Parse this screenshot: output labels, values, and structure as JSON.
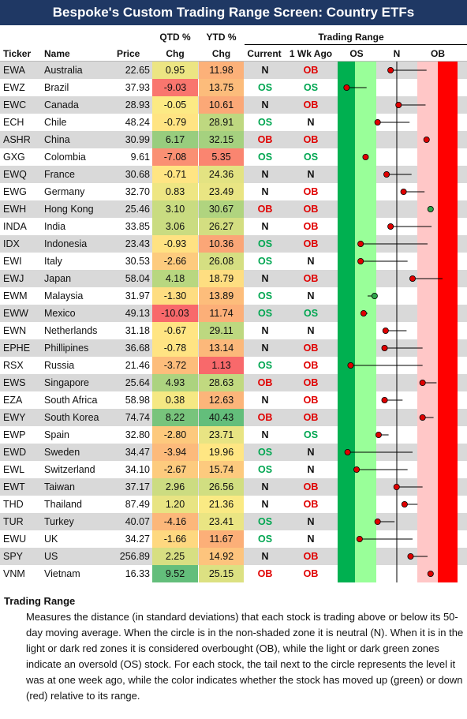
{
  "title": "Bespoke's Custom Trading Range Screen: Country ETFs",
  "headers": {
    "ticker": "Ticker",
    "name": "Name",
    "price": "Price",
    "qtd_top": "QTD %",
    "qtd_bot": "Chg",
    "ytd_top": "YTD %",
    "ytd_bot": "Chg",
    "trading_range": "Trading Range",
    "current": "Current",
    "week_ago": "1 Wk Ago",
    "os": "OS",
    "n": "N",
    "ob": "OB"
  },
  "colors": {
    "title_bg": "#1f3864",
    "os_text": "#00a651",
    "ob_text": "#e00000",
    "dark_green": "#00b050",
    "light_green": "#99ff99",
    "light_red": "#ffc7c7",
    "dark_red": "#ff0000",
    "dot_up": "#2ea64a",
    "dot_down": "#e00000"
  },
  "rows": [
    {
      "ticker": "EWA",
      "name": "Australia",
      "price": "22.65",
      "qtd": "0.95",
      "ytd": "11.98",
      "current": "N",
      "week_ago": "OB"
    },
    {
      "ticker": "EWZ",
      "name": "Brazil",
      "price": "37.93",
      "qtd": "-9.03",
      "ytd": "13.75",
      "current": "OS",
      "week_ago": "OS"
    },
    {
      "ticker": "EWC",
      "name": "Canada",
      "price": "28.93",
      "qtd": "-0.05",
      "ytd": "10.61",
      "current": "N",
      "week_ago": "OB"
    },
    {
      "ticker": "ECH",
      "name": "Chile",
      "price": "48.24",
      "qtd": "-0.79",
      "ytd": "28.91",
      "current": "OS",
      "week_ago": "N"
    },
    {
      "ticker": "ASHR",
      "name": "China",
      "price": "30.99",
      "qtd": "6.17",
      "ytd": "32.15",
      "current": "OB",
      "week_ago": "OB"
    },
    {
      "ticker": "GXG",
      "name": "Colombia",
      "price": "9.61",
      "qtd": "-7.08",
      "ytd": "5.35",
      "current": "OS",
      "week_ago": "OS"
    },
    {
      "ticker": "EWQ",
      "name": "France",
      "price": "30.68",
      "qtd": "-0.71",
      "ytd": "24.36",
      "current": "N",
      "week_ago": "N"
    },
    {
      "ticker": "EWG",
      "name": "Germany",
      "price": "32.70",
      "qtd": "0.83",
      "ytd": "23.49",
      "current": "N",
      "week_ago": "OB"
    },
    {
      "ticker": "EWH",
      "name": "Hong Kong",
      "price": "25.46",
      "qtd": "3.10",
      "ytd": "30.67",
      "current": "OB",
      "week_ago": "OB"
    },
    {
      "ticker": "INDA",
      "name": "India",
      "price": "33.85",
      "qtd": "3.06",
      "ytd": "26.27",
      "current": "N",
      "week_ago": "OB"
    },
    {
      "ticker": "IDX",
      "name": "Indonesia",
      "price": "23.43",
      "qtd": "-0.93",
      "ytd": "10.36",
      "current": "OS",
      "week_ago": "OB"
    },
    {
      "ticker": "EWI",
      "name": "Italy",
      "price": "30.53",
      "qtd": "-2.66",
      "ytd": "26.08",
      "current": "OS",
      "week_ago": "N"
    },
    {
      "ticker": "EWJ",
      "name": "Japan",
      "price": "58.04",
      "qtd": "4.18",
      "ytd": "18.79",
      "current": "N",
      "week_ago": "OB"
    },
    {
      "ticker": "EWM",
      "name": "Malaysia",
      "price": "31.97",
      "qtd": "-1.30",
      "ytd": "13.89",
      "current": "OS",
      "week_ago": "N"
    },
    {
      "ticker": "EWW",
      "name": "Mexico",
      "price": "49.13",
      "qtd": "-10.03",
      "ytd": "11.74",
      "current": "OS",
      "week_ago": "OS"
    },
    {
      "ticker": "EWN",
      "name": "Netherlands",
      "price": "31.18",
      "qtd": "-0.67",
      "ytd": "29.11",
      "current": "N",
      "week_ago": "N"
    },
    {
      "ticker": "EPHE",
      "name": "Phillipines",
      "price": "36.68",
      "qtd": "-0.78",
      "ytd": "13.14",
      "current": "N",
      "week_ago": "OB"
    },
    {
      "ticker": "RSX",
      "name": "Russia",
      "price": "21.46",
      "qtd": "-3.72",
      "ytd": "1.13",
      "current": "OS",
      "week_ago": "OB"
    },
    {
      "ticker": "EWS",
      "name": "Singapore",
      "price": "25.64",
      "qtd": "4.93",
      "ytd": "28.63",
      "current": "OB",
      "week_ago": "OB"
    },
    {
      "ticker": "EZA",
      "name": "South Africa",
      "price": "58.98",
      "qtd": "0.38",
      "ytd": "12.63",
      "current": "N",
      "week_ago": "OB"
    },
    {
      "ticker": "EWY",
      "name": "South Korea",
      "price": "74.74",
      "qtd": "8.22",
      "ytd": "40.43",
      "current": "OB",
      "week_ago": "OB"
    },
    {
      "ticker": "EWP",
      "name": "Spain",
      "price": "32.80",
      "qtd": "-2.80",
      "ytd": "23.71",
      "current": "N",
      "week_ago": "OS"
    },
    {
      "ticker": "EWD",
      "name": "Sweden",
      "price": "34.47",
      "qtd": "-3.94",
      "ytd": "19.96",
      "current": "OS",
      "week_ago": "N"
    },
    {
      "ticker": "EWL",
      "name": "Switzerland",
      "price": "34.10",
      "qtd": "-2.67",
      "ytd": "15.74",
      "current": "OS",
      "week_ago": "N"
    },
    {
      "ticker": "EWT",
      "name": "Taiwan",
      "price": "37.17",
      "qtd": "2.96",
      "ytd": "26.56",
      "current": "N",
      "week_ago": "OB"
    },
    {
      "ticker": "THD",
      "name": "Thailand",
      "price": "87.49",
      "qtd": "1.20",
      "ytd": "21.36",
      "current": "N",
      "week_ago": "OB"
    },
    {
      "ticker": "TUR",
      "name": "Turkey",
      "price": "40.07",
      "qtd": "-4.16",
      "ytd": "23.41",
      "current": "OS",
      "week_ago": "N"
    },
    {
      "ticker": "EWU",
      "name": "UK",
      "price": "34.27",
      "qtd": "-1.66",
      "ytd": "11.67",
      "current": "OS",
      "week_ago": "N"
    },
    {
      "ticker": "SPY",
      "name": "US",
      "price": "256.89",
      "qtd": "2.25",
      "ytd": "14.92",
      "current": "N",
      "week_ago": "OB"
    },
    {
      "ticker": "VNM",
      "name": "Vietnam",
      "price": "16.33",
      "qtd": "9.52",
      "ytd": "25.15",
      "current": "OB",
      "week_ago": "OB"
    }
  ],
  "chart_data": {
    "type": "range",
    "title": "Trading Range",
    "zones": [
      "OS",
      "N",
      "OB"
    ],
    "xlim": [
      -3,
      3
    ],
    "series": [
      {
        "name": "Current",
        "values": [
          -0.35,
          -2.55,
          0.05,
          -1.0,
          1.45,
          -1.6,
          -0.55,
          0.3,
          1.65,
          -0.35,
          -1.85,
          -1.85,
          0.75,
          -1.15,
          -1.7,
          -0.6,
          -0.65,
          -2.35,
          1.25,
          -0.65,
          1.25,
          -0.95,
          -2.5,
          -2.05,
          -0.05,
          0.35,
          -1.0,
          -1.9,
          0.65,
          1.65
        ]
      },
      {
        "name": "1 Wk Ago",
        "values": [
          1.45,
          -1.55,
          1.4,
          0.6,
          1.5,
          -1.55,
          0.7,
          1.35,
          1.65,
          1.7,
          1.5,
          0.5,
          2.25,
          -1.5,
          -1.5,
          0.45,
          1.25,
          1.25,
          1.95,
          0.25,
          1.8,
          -0.45,
          0.75,
          0.5,
          1.25,
          1.0,
          -0.15,
          0.75,
          1.5,
          1.8
        ]
      }
    ]
  },
  "notes": {
    "heading": "Trading Range",
    "body": "Measures the distance (in standard deviations) that each stock is trading above or below its 50-day moving average.  When the circle is in the non-shaded zone it is neutral (N).  When it is in the light or dark red zones it is considered overbought (OB), while the light or dark green zones indicate an oversold (OS) stock.  For each stock, the tail next to the circle represents the level it was at one week ago, while the color indicates whether the stock has moved up (green) or down (red) relative to its range."
  }
}
